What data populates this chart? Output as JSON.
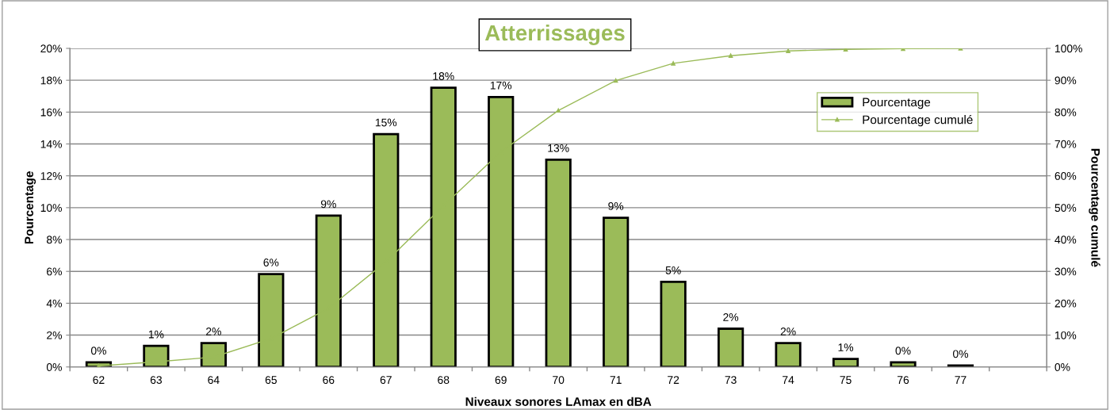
{
  "chart_data": {
    "type": "bar",
    "title": "Atterrissages",
    "xlabel": "Niveaux sonores LAmax en dBA",
    "ylabel": "Pourcentage",
    "y2label": "Pourcentage cumulé",
    "categories": [
      "62",
      "63",
      "64",
      "65",
      "66",
      "67",
      "68",
      "69",
      "70",
      "71",
      "72",
      "73",
      "74",
      "75",
      "76",
      "77",
      null
    ],
    "series": [
      {
        "name": "Pourcentage",
        "color": "#9bbb59",
        "values": [
          0.29,
          1.32,
          1.5,
          5.83,
          9.5,
          14.62,
          17.53,
          16.95,
          13.01,
          9.37,
          5.34,
          2.4,
          1.5,
          0.5,
          0.29,
          0.09,
          null
        ],
        "value_labels": [
          "0%",
          "1%",
          "2%",
          "6%",
          "9%",
          "15%",
          "18%",
          "17%",
          "13%",
          "9%",
          "5%",
          "2%",
          "2%",
          "1%",
          "0%",
          "0%",
          null
        ]
      },
      {
        "name": "Pourcentage cumulé",
        "type": "line",
        "axis": "y2",
        "color": "#9bbb59",
        "marker": "triangle",
        "values": [
          0.3,
          1.6,
          3.1,
          8.9,
          18.4,
          33,
          50.6,
          67.5,
          80.5,
          89.9,
          95.3,
          97.7,
          99.2,
          99.7,
          99.9,
          100,
          null
        ]
      }
    ],
    "ylim": [
      0,
      20
    ],
    "yticks": [
      {
        "value": 0,
        "label": "0%"
      },
      {
        "value": 2,
        "label": "2%"
      },
      {
        "value": 4,
        "label": "4%"
      },
      {
        "value": 6,
        "label": "6%"
      },
      {
        "value": 8,
        "label": "8%"
      },
      {
        "value": 10,
        "label": "10%"
      },
      {
        "value": 12,
        "label": "12%"
      },
      {
        "value": 14,
        "label": "14%"
      },
      {
        "value": 16,
        "label": "16%"
      },
      {
        "value": 18,
        "label": "18%"
      },
      {
        "value": 20,
        "label": "20%"
      }
    ],
    "y2lim": [
      0,
      100
    ],
    "y2ticks": [
      {
        "value": 0,
        "label": "0%"
      },
      {
        "value": 10,
        "label": "10%"
      },
      {
        "value": 20,
        "label": "20%"
      },
      {
        "value": 30,
        "label": "30%"
      },
      {
        "value": 40,
        "label": "40%"
      },
      {
        "value": 50,
        "label": "50%"
      },
      {
        "value": 60,
        "label": "60%"
      },
      {
        "value": 70,
        "label": "70%"
      },
      {
        "value": 80,
        "label": "80%"
      },
      {
        "value": 90,
        "label": "90%"
      },
      {
        "value": 100,
        "label": "100%"
      }
    ],
    "grid": "y",
    "legend": "top right"
  }
}
